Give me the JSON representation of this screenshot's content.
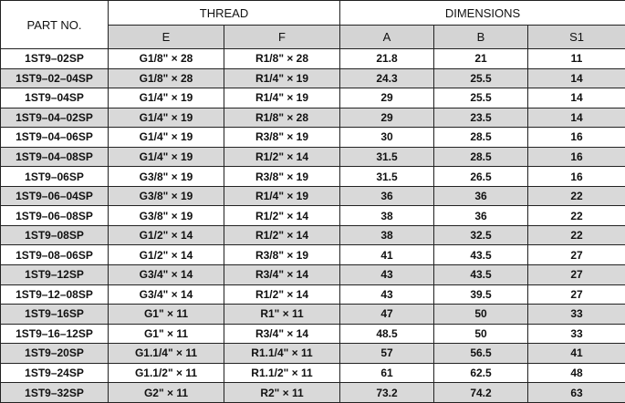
{
  "table": {
    "header": {
      "part_no": "PART NO.",
      "thread": "THREAD",
      "dimensions": "DIMENSIONS",
      "columns": [
        "E",
        "F",
        "A",
        "B",
        "S1"
      ]
    },
    "rows": [
      [
        "1ST9–02SP",
        "G1/8\" × 28",
        "R1/8\" × 28",
        "21.8",
        "21",
        "11"
      ],
      [
        "1ST9–02–04SP",
        "G1/8\" × 28",
        "R1/4\" × 19",
        "24.3",
        "25.5",
        "14"
      ],
      [
        "1ST9–04SP",
        "G1/4\" × 19",
        "R1/4\" × 19",
        "29",
        "25.5",
        "14"
      ],
      [
        "1ST9–04–02SP",
        "G1/4\" × 19",
        "R1/8\" × 28",
        "29",
        "23.5",
        "14"
      ],
      [
        "1ST9–04–06SP",
        "G1/4\" × 19",
        "R3/8\" × 19",
        "30",
        "28.5",
        "16"
      ],
      [
        "1ST9–04–08SP",
        "G1/4\" × 19",
        "R1/2\" × 14",
        "31.5",
        "28.5",
        "16"
      ],
      [
        "1ST9–06SP",
        "G3/8\" × 19",
        "R3/8\" × 19",
        "31.5",
        "26.5",
        "16"
      ],
      [
        "1ST9–06–04SP",
        "G3/8\" × 19",
        "R1/4\" × 19",
        "36",
        "36",
        "22"
      ],
      [
        "1ST9–06–08SP",
        "G3/8\" × 19",
        "R1/2\" × 14",
        "38",
        "36",
        "22"
      ],
      [
        "1ST9–08SP",
        "G1/2\" × 14",
        "R1/2\" × 14",
        "38",
        "32.5",
        "22"
      ],
      [
        "1ST9–08–06SP",
        "G1/2\" × 14",
        "R3/8\" × 19",
        "41",
        "43.5",
        "27"
      ],
      [
        "1ST9–12SP",
        "G3/4\" × 14",
        "R3/4\" × 14",
        "43",
        "43.5",
        "27"
      ],
      [
        "1ST9–12–08SP",
        "G3/4\" × 14",
        "R1/2\" × 14",
        "43",
        "39.5",
        "27"
      ],
      [
        "1ST9–16SP",
        "G1\" × 11",
        "R1\" × 11",
        "47",
        "50",
        "33"
      ],
      [
        "1ST9–16–12SP",
        "G1\" × 11",
        "R3/4\" × 14",
        "48.5",
        "50",
        "33"
      ],
      [
        "1ST9–20SP",
        "G1.1/4\" × 11",
        "R1.1/4\" × 11",
        "57",
        "56.5",
        "41"
      ],
      [
        "1ST9–24SP",
        "G1.1/2\" × 11",
        "R1.1/2\" × 11",
        "61",
        "62.5",
        "48"
      ],
      [
        "1ST9–32SP",
        "G2\" × 11",
        "R2\" × 11",
        "73.2",
        "74.2",
        "63"
      ]
    ]
  }
}
